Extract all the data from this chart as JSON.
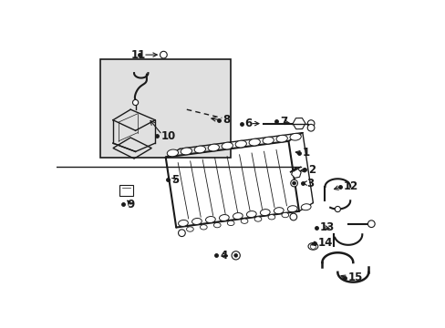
{
  "bg_color": "#ffffff",
  "line_color": "#1a1a1a",
  "inset_bg": "#e0e0e0",
  "lw": 1.0,
  "lw_thick": 1.5
}
